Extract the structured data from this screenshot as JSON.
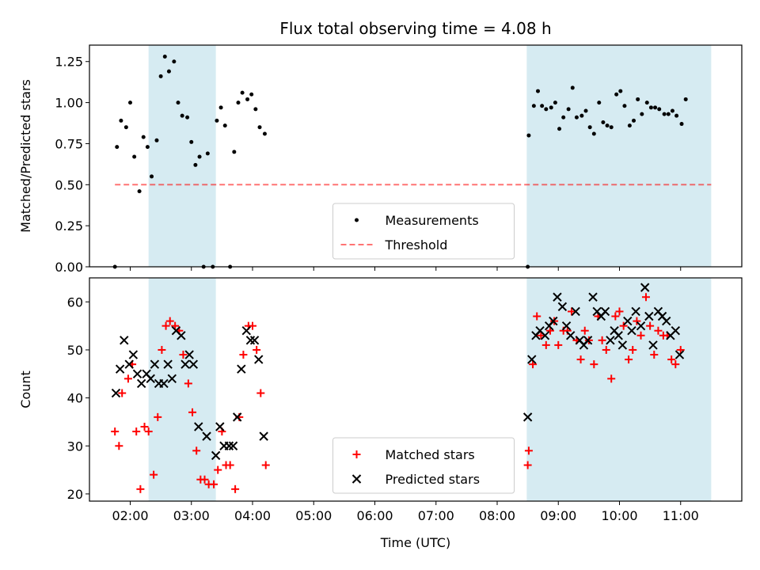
{
  "chart_data": [
    {
      "type": "scatter",
      "title": "Flux total observing time = 4.08 h",
      "xlabel": "",
      "ylabel": "Matched/Predicted stars",
      "xlim": [
        "01:20",
        "12:00"
      ],
      "ylim": [
        0,
        1.35
      ],
      "yticks": [
        "0.00",
        "0.25",
        "0.50",
        "0.75",
        "1.00",
        "1.25"
      ],
      "shaded_intervals": [
        [
          "02:18",
          "03:24"
        ],
        [
          "08:29",
          "11:30"
        ]
      ],
      "shade_color": "#add8e6",
      "legend": {
        "placement": "lower center",
        "entries": [
          "Measurements",
          "Threshold"
        ]
      },
      "threshold": {
        "name": "Threshold",
        "value": 0.5,
        "x_range": [
          "01:45",
          "11:30"
        ],
        "color": "#ff0000",
        "style": "dashed"
      },
      "series": [
        {
          "name": "Measurements",
          "color": "#000000",
          "marker": "dot",
          "points": [
            [
              "01:45",
              0.0
            ],
            [
              "01:47",
              0.73
            ],
            [
              "01:51",
              0.89
            ],
            [
              "01:56",
              0.85
            ],
            [
              "02:00",
              1.0
            ],
            [
              "02:04",
              0.67
            ],
            [
              "02:09",
              0.46
            ],
            [
              "02:13",
              0.79
            ],
            [
              "02:17",
              0.73
            ],
            [
              "02:21",
              0.55
            ],
            [
              "02:26",
              0.77
            ],
            [
              "02:30",
              1.16
            ],
            [
              "02:34",
              1.28
            ],
            [
              "02:38",
              1.19
            ],
            [
              "02:43",
              1.25
            ],
            [
              "02:47",
              1.0
            ],
            [
              "02:51",
              0.92
            ],
            [
              "02:56",
              0.91
            ],
            [
              "03:00",
              0.76
            ],
            [
              "03:04",
              0.62
            ],
            [
              "03:08",
              0.67
            ],
            [
              "03:12",
              0.0
            ],
            [
              "03:16",
              0.69
            ],
            [
              "03:21",
              0.0
            ],
            [
              "03:25",
              0.89
            ],
            [
              "03:29",
              0.97
            ],
            [
              "03:33",
              0.86
            ],
            [
              "03:38",
              0.0
            ],
            [
              "03:42",
              0.7
            ],
            [
              "03:46",
              1.0
            ],
            [
              "03:50",
              1.06
            ],
            [
              "03:55",
              1.02
            ],
            [
              "03:59",
              1.05
            ],
            [
              "04:03",
              0.96
            ],
            [
              "04:07",
              0.85
            ],
            [
              "04:12",
              0.81
            ],
            [
              "08:30",
              0.0
            ],
            [
              "08:31",
              0.8
            ],
            [
              "08:36",
              0.98
            ],
            [
              "08:40",
              1.07
            ],
            [
              "08:44",
              0.98
            ],
            [
              "08:48",
              0.96
            ],
            [
              "08:53",
              0.97
            ],
            [
              "08:57",
              1.0
            ],
            [
              "09:01",
              0.84
            ],
            [
              "09:05",
              0.91
            ],
            [
              "09:10",
              0.96
            ],
            [
              "09:14",
              1.09
            ],
            [
              "09:18",
              0.91
            ],
            [
              "09:23",
              0.92
            ],
            [
              "09:27",
              0.95
            ],
            [
              "09:31",
              0.85
            ],
            [
              "09:35",
              0.81
            ],
            [
              "09:40",
              1.0
            ],
            [
              "09:44",
              0.88
            ],
            [
              "09:48",
              0.86
            ],
            [
              "09:52",
              0.85
            ],
            [
              "09:57",
              1.05
            ],
            [
              "10:01",
              1.07
            ],
            [
              "10:05",
              0.98
            ],
            [
              "10:10",
              0.86
            ],
            [
              "10:14",
              0.89
            ],
            [
              "10:18",
              1.02
            ],
            [
              "10:22",
              0.93
            ],
            [
              "10:27",
              1.0
            ],
            [
              "10:31",
              0.97
            ],
            [
              "10:35",
              0.97
            ],
            [
              "10:39",
              0.96
            ],
            [
              "10:44",
              0.93
            ],
            [
              "10:48",
              0.93
            ],
            [
              "10:52",
              0.95
            ],
            [
              "10:56",
              0.92
            ],
            [
              "11:01",
              0.87
            ],
            [
              "11:05",
              1.02
            ]
          ]
        }
      ]
    },
    {
      "type": "scatter",
      "title": "",
      "xlabel": "Time (UTC)",
      "ylabel": "Count",
      "xlim": [
        "01:20",
        "12:00"
      ],
      "ylim": [
        18.5,
        65
      ],
      "yticks": [
        "20",
        "30",
        "40",
        "50",
        "60"
      ],
      "xticks": [
        "02:00",
        "03:00",
        "04:00",
        "05:00",
        "06:00",
        "07:00",
        "08:00",
        "09:00",
        "10:00",
        "11:00"
      ],
      "shaded_intervals": [
        [
          "02:18",
          "03:24"
        ],
        [
          "08:29",
          "11:30"
        ]
      ],
      "shade_color": "#add8e6",
      "legend": {
        "placement": "lower center",
        "entries": [
          "Matched stars",
          "Predicted stars"
        ]
      },
      "series": [
        {
          "name": "Matched stars",
          "color": "#ff0000",
          "marker": "plus",
          "points": [
            [
              "01:45",
              33
            ],
            [
              "01:49",
              30
            ],
            [
              "01:52",
              41
            ],
            [
              "01:58",
              44
            ],
            [
              "02:02",
              47
            ],
            [
              "02:06",
              33
            ],
            [
              "02:10",
              21
            ],
            [
              "02:14",
              34
            ],
            [
              "02:18",
              33
            ],
            [
              "02:23",
              24
            ],
            [
              "02:27",
              36
            ],
            [
              "02:31",
              50
            ],
            [
              "02:35",
              55
            ],
            [
              "02:39",
              56
            ],
            [
              "02:44",
              55
            ],
            [
              "02:48",
              54
            ],
            [
              "02:52",
              49
            ],
            [
              "02:57",
              43
            ],
            [
              "03:01",
              37
            ],
            [
              "03:05",
              29
            ],
            [
              "03:09",
              23
            ],
            [
              "03:13",
              23
            ],
            [
              "03:17",
              22
            ],
            [
              "03:22",
              22
            ],
            [
              "03:26",
              25
            ],
            [
              "03:30",
              33
            ],
            [
              "03:34",
              26
            ],
            [
              "03:38",
              26
            ],
            [
              "03:43",
              21
            ],
            [
              "03:47",
              36
            ],
            [
              "03:51",
              49
            ],
            [
              "03:56",
              55
            ],
            [
              "04:00",
              55
            ],
            [
              "04:04",
              50
            ],
            [
              "04:08",
              41
            ],
            [
              "04:13",
              26
            ],
            [
              "08:30",
              26
            ],
            [
              "08:31",
              29
            ],
            [
              "08:35",
              47
            ],
            [
              "08:39",
              57
            ],
            [
              "08:43",
              53
            ],
            [
              "08:48",
              51
            ],
            [
              "08:52",
              54
            ],
            [
              "08:56",
              56
            ],
            [
              "09:00",
              51
            ],
            [
              "09:05",
              54
            ],
            [
              "09:09",
              54
            ],
            [
              "09:13",
              58
            ],
            [
              "09:18",
              52
            ],
            [
              "09:22",
              48
            ],
            [
              "09:26",
              54
            ],
            [
              "09:30",
              52
            ],
            [
              "09:35",
              47
            ],
            [
              "09:39",
              57
            ],
            [
              "09:43",
              52
            ],
            [
              "09:47",
              50
            ],
            [
              "09:52",
              44
            ],
            [
              "09:56",
              57
            ],
            [
              "10:00",
              58
            ],
            [
              "10:04",
              55
            ],
            [
              "10:09",
              48
            ],
            [
              "10:13",
              50
            ],
            [
              "10:17",
              56
            ],
            [
              "10:21",
              53
            ],
            [
              "10:26",
              61
            ],
            [
              "10:30",
              55
            ],
            [
              "10:34",
              49
            ],
            [
              "10:38",
              54
            ],
            [
              "10:43",
              53
            ],
            [
              "10:47",
              53
            ],
            [
              "10:51",
              48
            ],
            [
              "10:55",
              47
            ],
            [
              "11:00",
              50
            ]
          ]
        },
        {
          "name": "Predicted stars",
          "color": "#000000",
          "marker": "x",
          "points": [
            [
              "01:46",
              41
            ],
            [
              "01:50",
              46
            ],
            [
              "01:54",
              52
            ],
            [
              "01:59",
              47
            ],
            [
              "02:03",
              49
            ],
            [
              "02:07",
              45
            ],
            [
              "02:11",
              43
            ],
            [
              "02:16",
              45
            ],
            [
              "02:20",
              44
            ],
            [
              "02:24",
              47
            ],
            [
              "02:28",
              43
            ],
            [
              "02:33",
              43
            ],
            [
              "02:37",
              47
            ],
            [
              "02:41",
              44
            ],
            [
              "02:45",
              54
            ],
            [
              "02:50",
              53
            ],
            [
              "02:54",
              47
            ],
            [
              "02:58",
              49
            ],
            [
              "03:02",
              47
            ],
            [
              "03:07",
              34
            ],
            [
              "03:15",
              32
            ],
            [
              "03:24",
              28
            ],
            [
              "03:28",
              34
            ],
            [
              "03:32",
              30
            ],
            [
              "03:37",
              30
            ],
            [
              "03:41",
              30
            ],
            [
              "03:45",
              36
            ],
            [
              "03:49",
              46
            ],
            [
              "03:54",
              54
            ],
            [
              "03:58",
              52
            ],
            [
              "04:02",
              52
            ],
            [
              "04:06",
              48
            ],
            [
              "04:11",
              32
            ],
            [
              "08:30",
              36
            ],
            [
              "08:34",
              48
            ],
            [
              "08:38",
              53
            ],
            [
              "08:42",
              54
            ],
            [
              "08:47",
              53
            ],
            [
              "08:51",
              55
            ],
            [
              "08:55",
              56
            ],
            [
              "08:59",
              61
            ],
            [
              "09:04",
              59
            ],
            [
              "09:08",
              55
            ],
            [
              "09:12",
              53
            ],
            [
              "09:17",
              58
            ],
            [
              "09:21",
              52
            ],
            [
              "09:25",
              51
            ],
            [
              "09:29",
              52
            ],
            [
              "09:34",
              61
            ],
            [
              "09:38",
              58
            ],
            [
              "09:42",
              57
            ],
            [
              "09:46",
              58
            ],
            [
              "09:51",
              52
            ],
            [
              "09:55",
              54
            ],
            [
              "09:59",
              53
            ],
            [
              "10:03",
              51
            ],
            [
              "10:08",
              56
            ],
            [
              "10:12",
              54
            ],
            [
              "10:16",
              58
            ],
            [
              "10:21",
              55
            ],
            [
              "10:25",
              63
            ],
            [
              "10:29",
              57
            ],
            [
              "10:33",
              51
            ],
            [
              "10:38",
              58
            ],
            [
              "10:42",
              57
            ],
            [
              "10:46",
              56
            ],
            [
              "10:50",
              53
            ],
            [
              "10:55",
              54
            ],
            [
              "10:59",
              49
            ]
          ]
        }
      ]
    }
  ]
}
